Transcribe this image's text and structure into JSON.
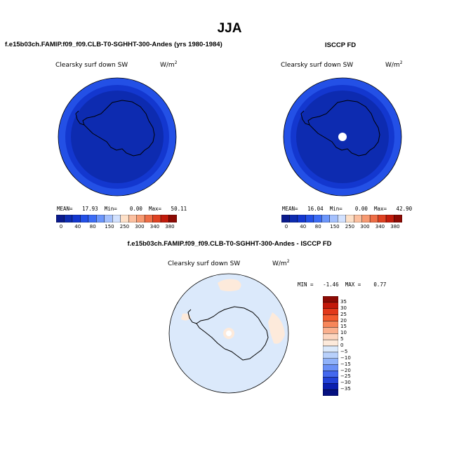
{
  "season": "JJA",
  "panels": {
    "model": {
      "title": "f.e15b03ch.FAMIP.f09_f09.CLB-T0-SGHHT-300-Andes (yrs 1980-1984)",
      "variable": "Clearsky surf down SW",
      "units_base": "W/m",
      "units_exp": "2",
      "stats": "MEAN=   17.93  Min=    0.00  Max=   50.11"
    },
    "obs": {
      "title": "ISCCP FD",
      "variable": "Clearsky surf down SW",
      "units_base": "W/m",
      "units_exp": "2",
      "stats": "MEAN=   16.04  Min=    0.00  Max=   42.90"
    },
    "diff": {
      "title": "f.e15b03ch.FAMIP.f09_f09.CLB-T0-SGHHT-300-Andes - ISCCP FD",
      "variable": "Clearsky surf down SW",
      "units_base": "W/m",
      "units_exp": "2",
      "minmax": "MIN =   -1.46  MAX =    0.77"
    }
  },
  "colorbar_abs": {
    "colors": [
      "#0a1a8c",
      "#0d2bb0",
      "#1337cf",
      "#2350e6",
      "#3c6cf5",
      "#6c96fb",
      "#a4c0fd",
      "#d2e1fe",
      "#fde0c8",
      "#fcc0a0",
      "#f79a72",
      "#ee6e47",
      "#df4222",
      "#c21c0c",
      "#8c0a04"
    ],
    "labels": [
      "0",
      "40",
      "80",
      "150",
      "250",
      "300",
      "340",
      "380"
    ]
  },
  "colorbar_diff": {
    "colors": [
      "#8c0a04",
      "#c2180a",
      "#e2381a",
      "#f25a2e",
      "#f7865a",
      "#fab08e",
      "#fdd6c0",
      "#fdeadb",
      "#dbe9fb",
      "#b8d0fb",
      "#90b2fa",
      "#6a90f6",
      "#4468ee",
      "#2342d8",
      "#0b1fb0",
      "#051080"
    ],
    "labels": [
      "35",
      "30",
      "25",
      "20",
      "15",
      "10",
      "5",
      "0",
      "−5",
      "−10",
      "−15",
      "−20",
      "−25",
      "−30",
      "−35"
    ]
  },
  "map_colors": {
    "abs_outer": "#2350e6",
    "abs_mid": "#1337cf",
    "abs_inner": "#0d2bb0",
    "diff_bg": "#dbe9fb",
    "diff_pos": "#fdeadb"
  }
}
